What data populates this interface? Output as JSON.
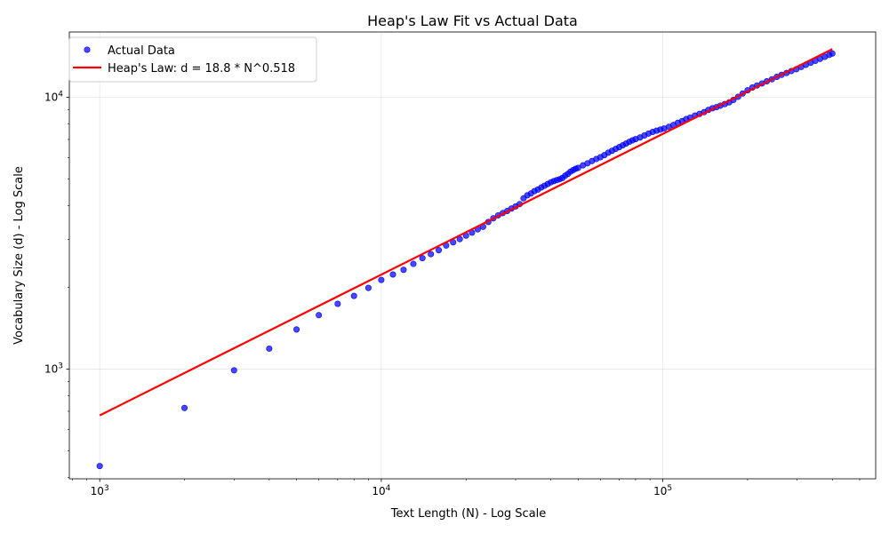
{
  "chart_data": {
    "type": "scatter",
    "title": "Heap's Law Fit vs Actual Data",
    "xlabel": "Text Length (N) - Log Scale",
    "ylabel": "Vocabulary Size (d) - Log Scale",
    "xscale": "log",
    "yscale": "log",
    "xlim": [
      780,
      570000
    ],
    "ylim": [
      395,
      17400
    ],
    "grid": true,
    "legend_position": "upper-left",
    "x_ticks": [
      {
        "value": 1000,
        "base": "10",
        "exp": "3"
      },
      {
        "value": 10000,
        "base": "10",
        "exp": "4"
      },
      {
        "value": 100000,
        "base": "10",
        "exp": "5"
      }
    ],
    "y_ticks": [
      {
        "value": 1000,
        "base": "10",
        "exp": "3"
      },
      {
        "value": 10000,
        "base": "10",
        "exp": "4"
      }
    ],
    "series": [
      {
        "name": "Actual Data",
        "kind": "scatter",
        "color": "#0000ff",
        "x": [
          1000,
          2000,
          3000,
          4000,
          5000,
          6000,
          7000,
          8000,
          9000,
          10000,
          11000,
          12000,
          13000,
          14000,
          15000,
          16000,
          17000,
          18000,
          19000,
          20000,
          21000,
          22000,
          23000,
          24000,
          25000,
          26000,
          27000,
          28000,
          29000,
          30000,
          31000,
          32000,
          33000,
          34000,
          35000,
          36000,
          37000,
          38000,
          39000,
          40000,
          41000,
          42000,
          43000,
          44000,
          45000,
          46000,
          47000,
          48000,
          49000,
          50000,
          52000,
          54000,
          56000,
          58000,
          60000,
          62000,
          64000,
          66000,
          68000,
          70000,
          72000,
          74000,
          76000,
          78000,
          80000,
          83000,
          86000,
          89000,
          92000,
          95000,
          98000,
          101000,
          105000,
          109000,
          113000,
          117000,
          121000,
          125000,
          130000,
          135000,
          140000,
          145000,
          150000,
          155000,
          160000,
          166000,
          172000,
          178000,
          185000,
          192000,
          200000,
          208000,
          216000,
          225000,
          234000,
          244000,
          254000,
          264000,
          275000,
          286000,
          298000,
          310000,
          322000,
          335000,
          348000,
          362000,
          376000,
          390000,
          400000
        ],
        "y": [
          440,
          720,
          990,
          1190,
          1400,
          1580,
          1740,
          1860,
          1990,
          2130,
          2230,
          2320,
          2440,
          2560,
          2650,
          2740,
          2850,
          2930,
          3010,
          3100,
          3180,
          3270,
          3340,
          3480,
          3590,
          3680,
          3750,
          3820,
          3900,
          3970,
          4050,
          4250,
          4360,
          4430,
          4520,
          4580,
          4660,
          4730,
          4800,
          4870,
          4920,
          4960,
          5000,
          5050,
          5150,
          5230,
          5330,
          5400,
          5460,
          5500,
          5620,
          5720,
          5830,
          5930,
          6020,
          6130,
          6260,
          6360,
          6460,
          6560,
          6660,
          6760,
          6860,
          6950,
          7020,
          7120,
          7240,
          7360,
          7460,
          7540,
          7610,
          7680,
          7790,
          7910,
          8060,
          8180,
          8320,
          8420,
          8570,
          8690,
          8820,
          8990,
          9120,
          9200,
          9320,
          9450,
          9580,
          9780,
          10050,
          10330,
          10620,
          10870,
          11060,
          11250,
          11460,
          11660,
          11900,
          12100,
          12300,
          12500,
          12700,
          12940,
          13170,
          13400,
          13620,
          13860,
          14090,
          14330,
          14500
        ]
      },
      {
        "name": "Heap's Law: d = 18.8 * N^0.518",
        "kind": "line",
        "color": "#ff0000",
        "x": [
          1000,
          400000
        ],
        "y": [
          676,
          15050
        ]
      }
    ]
  }
}
